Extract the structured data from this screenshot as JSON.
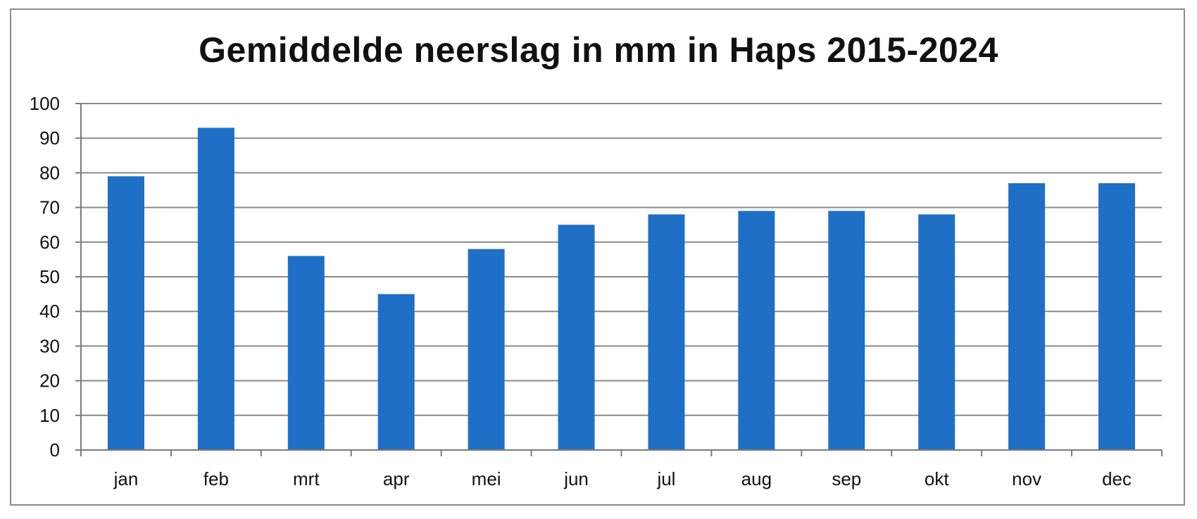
{
  "chart_data": {
    "type": "bar",
    "title": "Gemiddelde neerslag in mm in Haps 2015-2024",
    "categories": [
      "jan",
      "feb",
      "mrt",
      "apr",
      "mei",
      "jun",
      "jul",
      "aug",
      "sep",
      "okt",
      "nov",
      "dec"
    ],
    "values": [
      79,
      93,
      56,
      45,
      58,
      65,
      68,
      69,
      69,
      68,
      77,
      77
    ],
    "ylim": [
      0,
      100
    ],
    "yticks": [
      "0",
      "10",
      "20",
      "30",
      "40",
      "50",
      "60",
      "70",
      "80",
      "90",
      "100"
    ],
    "xlabel": "",
    "ylabel": "",
    "grid": true,
    "legend": "none",
    "colors": {
      "bar": "#1f6fc6",
      "grid": "#8a8a8a",
      "axis": "#7a7a7a",
      "text": "#111111"
    }
  }
}
